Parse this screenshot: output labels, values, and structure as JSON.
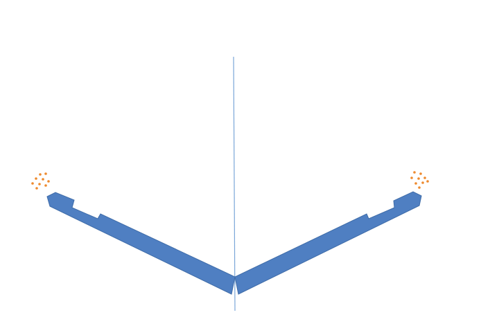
{
  "diagram": {
    "colors": {
      "background": "#ffffff",
      "wing_fill": "#4f7fc2",
      "wing_stroke": "#3f6ca8",
      "axis_line": "#7aa6d8",
      "particles": "#ee8a2e"
    }
  }
}
